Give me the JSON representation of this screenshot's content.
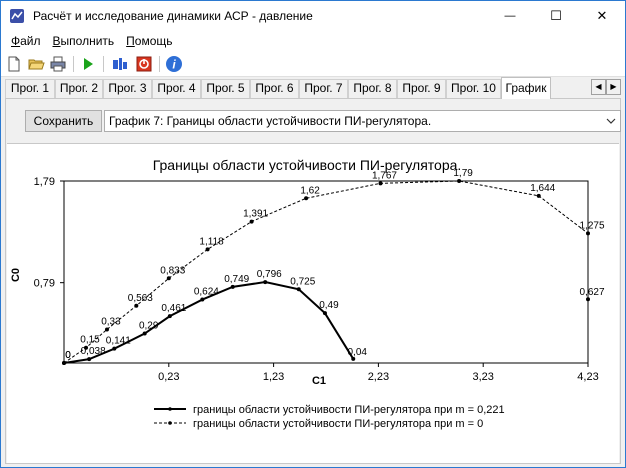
{
  "window": {
    "title": "Расчёт и исследование динамики АСР - давление",
    "minimize_glyph": "—",
    "maximize_glyph": "☐",
    "close_glyph": "✕"
  },
  "menu": {
    "items": [
      {
        "first": "Ф",
        "rest": "айл"
      },
      {
        "first": "В",
        "rest": "ыполнить"
      },
      {
        "first": "П",
        "rest": "омощь"
      }
    ]
  },
  "toolbar": {
    "icons": [
      "new-document-icon",
      "open-folder-icon",
      "print-icon",
      "run-icon",
      "calculator-icon",
      "stop-icon",
      "info-icon"
    ],
    "info_glyph": "i"
  },
  "tabs": {
    "items": [
      "Прог. 1",
      "Прог. 2",
      "Прог. 3",
      "Прог. 4",
      "Прог. 5",
      "Прог. 6",
      "Прог. 7",
      "Прог. 8",
      "Прог. 9",
      "Прог. 10",
      "График"
    ],
    "active": "График",
    "scroll_left": "◀",
    "scroll_right": "▶"
  },
  "controls": {
    "save_label": "Сохранить",
    "chart_selected": "График 7: Границы области устойчивости ПИ-регулятора."
  },
  "colors": {
    "accent": "#2b79d0",
    "series_solid": "#000000",
    "series_dashed": "#000000"
  },
  "chart_data": {
    "type": "line",
    "title": "Границы области устойчивости ПИ-регулятора.",
    "xlabel": "C1",
    "ylabel": "C0",
    "xlim": [
      -0.77,
      4.23
    ],
    "ylim": [
      0,
      1.79
    ],
    "x_ticks": [
      "0,23",
      "1,23",
      "2,23",
      "3,23",
      "4,23"
    ],
    "y_ticks": [
      "1,79",
      "0,79"
    ],
    "legend_position": "bottom",
    "series": [
      {
        "name": "границы области устойчивости ПИ-регулятора при m = 0,221",
        "style": "solid",
        "x": [
          -0.77,
          -0.53,
          -0.29,
          0.0,
          0.24,
          0.55,
          0.84,
          1.15,
          1.47,
          1.72
        ],
        "y": [
          0.0,
          0.038,
          0.141,
          0.29,
          0.461,
          0.624,
          0.749,
          0.796,
          0.725,
          0.49
        ],
        "labels": [
          "0",
          "0,038",
          "0,141",
          "0,29",
          "0,461",
          "0,624",
          "0,749",
          "0,796",
          "0,725",
          "0,49"
        ],
        "end_point": {
          "x": 1.99,
          "y": 0.04,
          "label": "0,04"
        }
      },
      {
        "name": "границы области устойчивости ПИ-регулятора при m = 0",
        "style": "dashed",
        "x": [
          -0.77,
          -0.56,
          -0.36,
          -0.08,
          0.23,
          0.6,
          1.02,
          1.54,
          2.25,
          3.0,
          3.76,
          4.23
        ],
        "y": [
          0.0,
          0.15,
          0.33,
          0.563,
          0.833,
          1.118,
          1.391,
          1.62,
          1.767,
          1.79,
          1.644,
          1.275
        ],
        "labels": [
          "0",
          "0,15",
          "0,33",
          "0,563",
          "0,833",
          "1,118",
          "1,391",
          "1,62",
          "1,767",
          "1,79",
          "1,644",
          "1,275"
        ],
        "end_point": {
          "x": 4.23,
          "y": 0.627,
          "label": "0,627"
        }
      }
    ]
  }
}
